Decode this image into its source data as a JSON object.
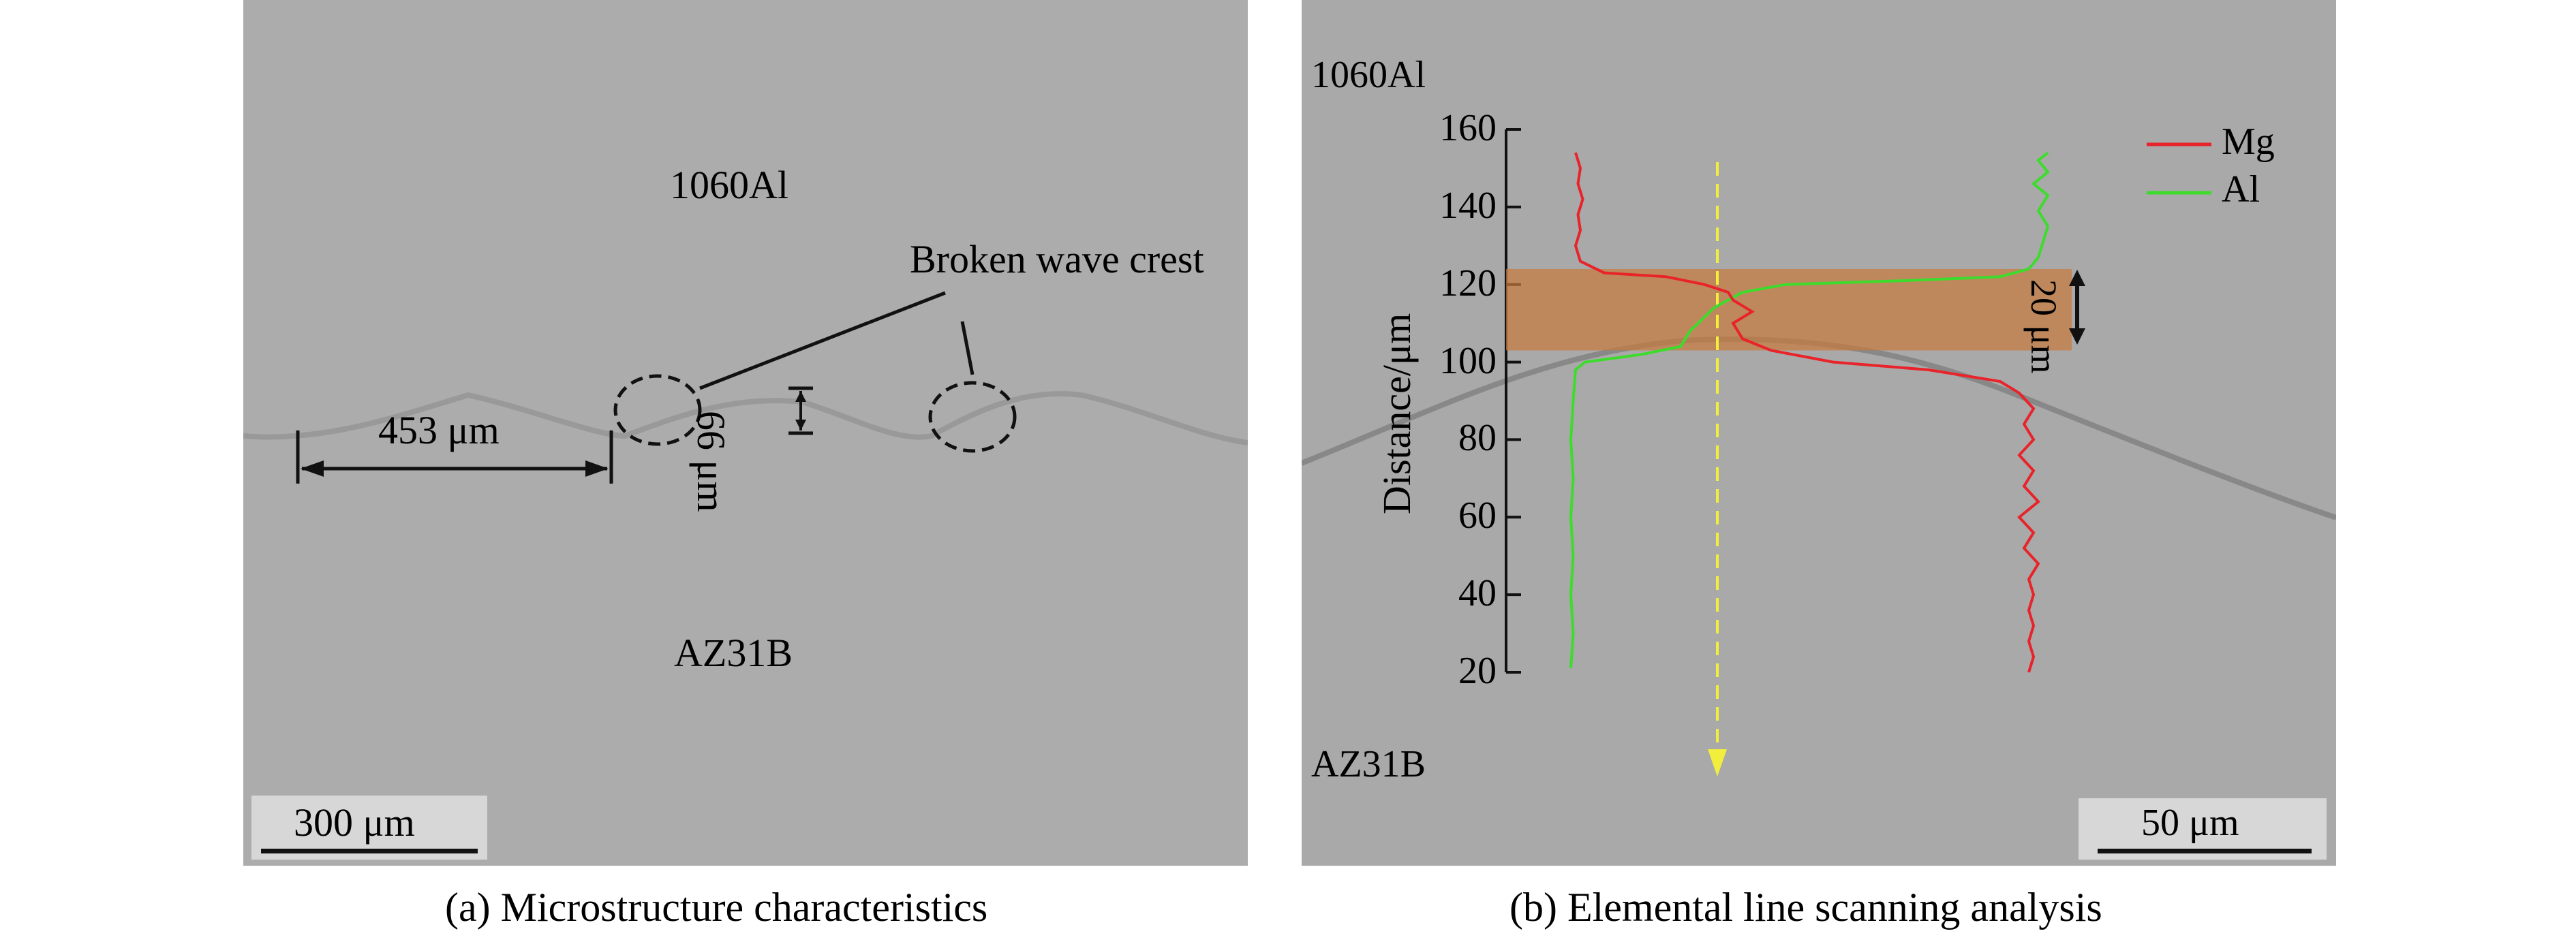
{
  "panel_a": {
    "caption": "(a) Microstructure characteristics",
    "top_material": "1060Al",
    "bottom_material": "AZ31B",
    "annotation": "Broken wave crest",
    "wavelength_label": "453 μm",
    "amplitude_label": "66 μm",
    "scale_bar": "300 μm"
  },
  "panel_b": {
    "caption": "(b) Elemental line scanning analysis",
    "top_material": "1060Al",
    "bottom_material": "AZ31B",
    "scale_bar": "50 μm",
    "band_label": "20 μm",
    "ylabel": "Distance/μm",
    "yticks": [
      "20",
      "40",
      "60",
      "80",
      "100",
      "120",
      "140",
      "160"
    ],
    "legend": [
      {
        "name": "Mg",
        "color": "#e8232a"
      },
      {
        "name": "Al",
        "color": "#3ddc2c"
      }
    ]
  },
  "chart_data": {
    "type": "line",
    "ylabel": "Distance/μm",
    "ylim": [
      20,
      160
    ],
    "yticks": [
      20,
      40,
      60,
      80,
      100,
      120,
      140,
      160
    ],
    "band": [
      103,
      124
    ],
    "band_label": "20 μm",
    "series": [
      {
        "name": "Mg",
        "color": "#e8232a",
        "points": [
          [
            0.96,
            20
          ],
          [
            0.97,
            24
          ],
          [
            0.96,
            28
          ],
          [
            0.97,
            32
          ],
          [
            0.96,
            36
          ],
          [
            0.97,
            40
          ],
          [
            0.96,
            44
          ],
          [
            0.98,
            48
          ],
          [
            0.95,
            52
          ],
          [
            0.97,
            56
          ],
          [
            0.94,
            60
          ],
          [
            0.98,
            64
          ],
          [
            0.95,
            68
          ],
          [
            0.97,
            72
          ],
          [
            0.94,
            76
          ],
          [
            0.97,
            80
          ],
          [
            0.95,
            84
          ],
          [
            0.97,
            88
          ],
          [
            0.94,
            92
          ],
          [
            0.9,
            95
          ],
          [
            0.75,
            98
          ],
          [
            0.55,
            100
          ],
          [
            0.42,
            103
          ],
          [
            0.36,
            106
          ],
          [
            0.34,
            110
          ],
          [
            0.38,
            113
          ],
          [
            0.34,
            116
          ],
          [
            0.33,
            118
          ],
          [
            0.28,
            120
          ],
          [
            0.2,
            122
          ],
          [
            0.07,
            123
          ],
          [
            0.02,
            126
          ],
          [
            0.01,
            130
          ],
          [
            0.02,
            134
          ],
          [
            0.015,
            138
          ],
          [
            0.025,
            142
          ],
          [
            0.015,
            146
          ],
          [
            0.02,
            150
          ],
          [
            0.01,
            154
          ]
        ]
      },
      {
        "name": "Al",
        "color": "#3ddc2c",
        "points": [
          [
            0.0,
            21
          ],
          [
            0.005,
            30
          ],
          [
            0.0,
            40
          ],
          [
            0.005,
            50
          ],
          [
            0.0,
            60
          ],
          [
            0.005,
            70
          ],
          [
            0.0,
            80
          ],
          [
            0.005,
            90
          ],
          [
            0.01,
            98
          ],
          [
            0.03,
            100
          ],
          [
            0.15,
            102
          ],
          [
            0.23,
            104
          ],
          [
            0.25,
            108
          ],
          [
            0.3,
            114
          ],
          [
            0.36,
            118
          ],
          [
            0.45,
            120
          ],
          [
            0.7,
            121
          ],
          [
            0.9,
            122
          ],
          [
            0.96,
            124
          ],
          [
            0.98,
            127
          ],
          [
            0.99,
            131
          ],
          [
            1.0,
            135
          ],
          [
            0.98,
            139
          ],
          [
            1.0,
            143
          ],
          [
            0.97,
            146
          ],
          [
            1.0,
            149
          ],
          [
            0.98,
            152
          ],
          [
            1.0,
            154
          ]
        ]
      }
    ]
  },
  "colors": {
    "band": "#c87a3c",
    "scan_arrow": "#f2ef3c"
  }
}
